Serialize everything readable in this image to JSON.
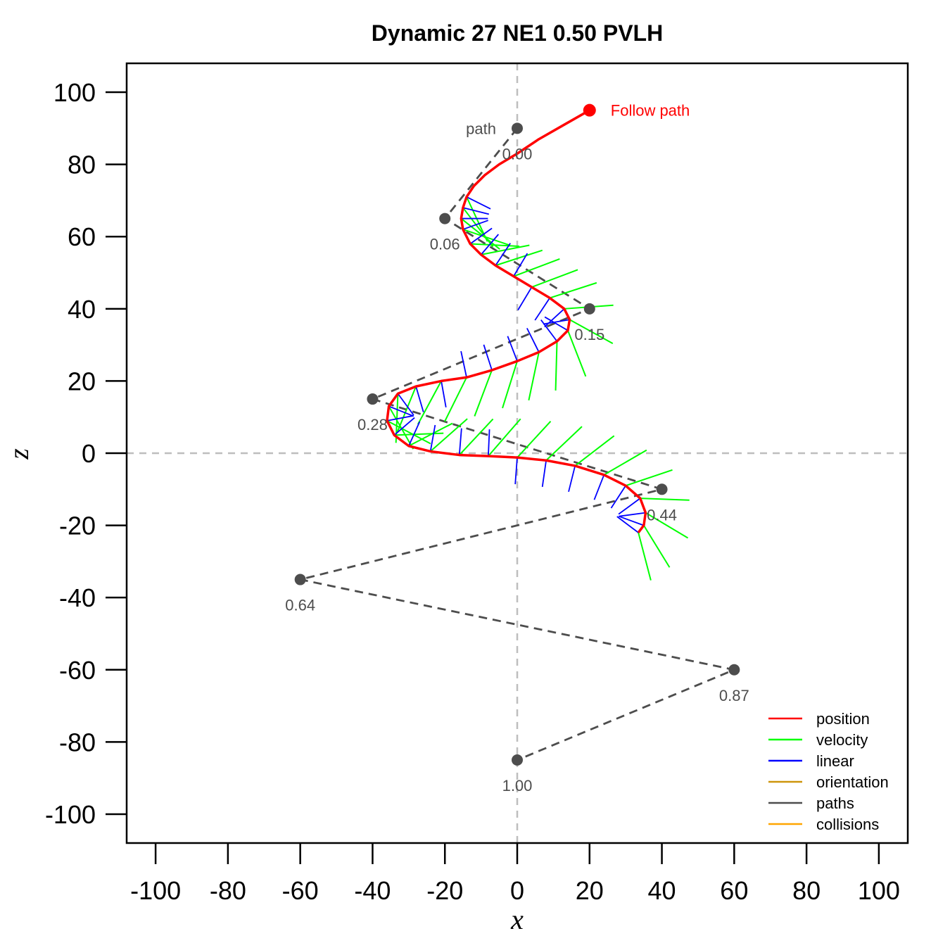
{
  "chart_data": {
    "type": "line",
    "title": "Dynamic 27 NE1 0.50 PVLH",
    "xlabel": "x",
    "ylabel": "z",
    "xlim": [
      -108,
      108
    ],
    "ylim": [
      108,
      -108
    ],
    "x_ticks": [
      -100,
      -80,
      -60,
      -40,
      -20,
      0,
      20,
      40,
      60,
      80,
      100
    ],
    "x_tick_labels": [
      "-100",
      "-80",
      "-60",
      "-40",
      "-20",
      "0",
      "20",
      "40",
      "60",
      "80",
      "100"
    ],
    "y_ticks": [
      -100,
      -80,
      -60,
      -40,
      -20,
      0,
      20,
      40,
      60,
      80,
      100
    ],
    "y_tick_labels": [
      "-100",
      "-80",
      "-60",
      "-40",
      "-20",
      "0",
      "20",
      "40",
      "60",
      "80",
      "100"
    ],
    "reference_lines": {
      "x": 0,
      "z": 0,
      "color": "#bebebe",
      "style": "dashed"
    },
    "path": {
      "name": "path",
      "color": "#4d4d4d",
      "style": "dashed",
      "waypoints": [
        {
          "x": 0,
          "z": 90,
          "label": "0.00"
        },
        {
          "x": -20,
          "z": 65,
          "label": "0.06"
        },
        {
          "x": 20,
          "z": 40,
          "label": "0.15"
        },
        {
          "x": -40,
          "z": 15,
          "label": "0.28"
        },
        {
          "x": 40,
          "z": -10,
          "label": "0.44"
        },
        {
          "x": -60,
          "z": -35,
          "label": "0.64"
        },
        {
          "x": 60,
          "z": -60,
          "label": "0.87"
        },
        {
          "x": 0,
          "z": -85,
          "label": "1.00"
        }
      ]
    },
    "agent": {
      "label": "Follow path",
      "color": "#ff0000",
      "position": {
        "x": 20,
        "z": 95
      },
      "trajectory": [
        [
          20,
          95
        ],
        [
          13,
          91
        ],
        [
          6,
          87
        ],
        [
          0,
          83
        ],
        [
          -5,
          80
        ],
        [
          -9,
          77
        ],
        [
          -12,
          74
        ],
        [
          -14,
          71
        ],
        [
          -15,
          68
        ],
        [
          -15.5,
          65
        ],
        [
          -15,
          62
        ],
        [
          -13,
          58
        ],
        [
          -10,
          55
        ],
        [
          -6,
          52
        ],
        [
          -1,
          49
        ],
        [
          4,
          46
        ],
        [
          9,
          43
        ],
        [
          13,
          40
        ],
        [
          14.5,
          37
        ],
        [
          14,
          34
        ],
        [
          11,
          31
        ],
        [
          6,
          28
        ],
        [
          0,
          25.5
        ],
        [
          -7,
          23
        ],
        [
          -14,
          21
        ],
        [
          -21,
          20
        ],
        [
          -28,
          18.5
        ],
        [
          -33,
          16.5
        ],
        [
          -35.5,
          13
        ],
        [
          -36,
          9
        ],
        [
          -34,
          5
        ],
        [
          -30,
          2
        ],
        [
          -24,
          0.5
        ],
        [
          -16,
          -0.5
        ],
        [
          -8,
          -0.8
        ],
        [
          0,
          -1.2
        ],
        [
          8,
          -2
        ],
        [
          16,
          -3.5
        ],
        [
          24,
          -6
        ],
        [
          30,
          -9
        ],
        [
          34,
          -12.5
        ],
        [
          35.5,
          -16.5
        ],
        [
          35,
          -20
        ],
        [
          33.5,
          -22
        ]
      ]
    },
    "velocity_samples": [
      [
        -14,
        71
      ],
      [
        -15,
        68
      ],
      [
        -15.5,
        65
      ],
      [
        -15,
        62
      ],
      [
        -13,
        58
      ],
      [
        -10,
        55
      ],
      [
        -6,
        52
      ],
      [
        -1,
        49
      ],
      [
        4,
        46
      ],
      [
        9,
        43
      ],
      [
        13,
        40
      ],
      [
        14.5,
        37
      ],
      [
        14,
        34
      ],
      [
        11,
        31
      ],
      [
        6,
        28
      ],
      [
        0,
        25.5
      ],
      [
        -7,
        23
      ],
      [
        -14,
        21
      ],
      [
        -21,
        20
      ],
      [
        -28,
        18.5
      ],
      [
        -33,
        16.5
      ],
      [
        -35.5,
        13
      ],
      [
        -36,
        9
      ],
      [
        -34,
        5
      ],
      [
        -30,
        2
      ],
      [
        -24,
        0.5
      ],
      [
        -16,
        -0.5
      ],
      [
        -8,
        -0.8
      ],
      [
        0,
        -1.2
      ],
      [
        8,
        -2
      ],
      [
        16,
        -3.5
      ],
      [
        24,
        -6
      ],
      [
        30,
        -9
      ],
      [
        34,
        -12.5
      ],
      [
        35.5,
        -16.5
      ],
      [
        35,
        -20
      ],
      [
        33.5,
        -22
      ]
    ],
    "legend": {
      "position": "bottom-right",
      "entries": [
        {
          "label": "position",
          "color": "#ff0000"
        },
        {
          "label": "velocity",
          "color": "#00ff00"
        },
        {
          "label": "linear",
          "color": "#0000ff"
        },
        {
          "label": "orientation",
          "color": "#cd950c"
        },
        {
          "label": "paths",
          "color": "#4d4d4d"
        },
        {
          "label": "collisions",
          "color": "#ffa500"
        }
      ]
    }
  }
}
